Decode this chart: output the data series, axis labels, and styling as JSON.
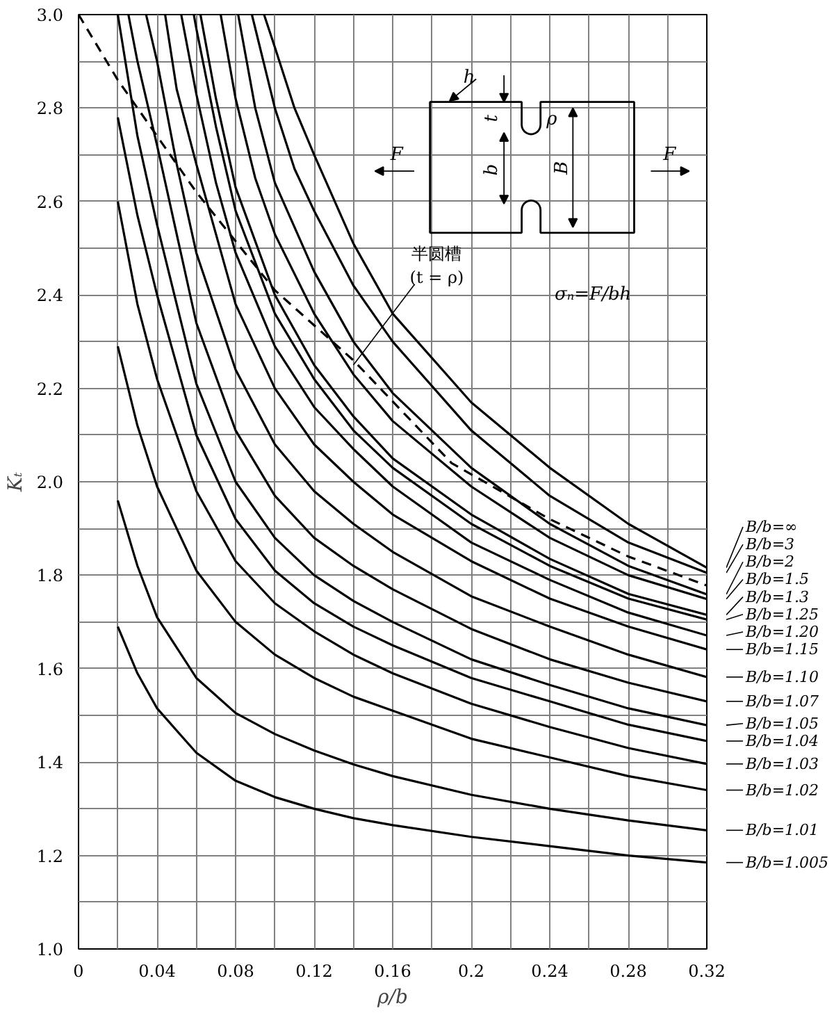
{
  "chart_data": {
    "type": "line",
    "xlabel": "ρ/b",
    "ylabel": "Kₜ",
    "xlim": [
      0,
      0.32
    ],
    "ylim": [
      1.0,
      3.0
    ],
    "xticks": [
      0,
      {
        "value": 0.02,
        "label": null
      },
      0.04,
      {
        "value": 0.06,
        "label": null
      },
      0.08,
      {
        "value": 0.1,
        "label": null
      },
      0.12,
      {
        "value": 0.14,
        "label": null
      },
      0.16,
      {
        "value": 0.18,
        "label": null
      },
      0.2,
      {
        "value": 0.22,
        "label": null
      },
      0.24,
      {
        "value": 0.26,
        "label": null
      },
      0.28,
      {
        "value": 0.3,
        "label": null
      },
      0.32
    ],
    "yticks": [
      {
        "value": 1.0,
        "label": "1.0"
      },
      {
        "value": 1.1,
        "label": null
      },
      1.2,
      {
        "value": 1.3,
        "label": null
      },
      1.4,
      {
        "value": 1.5,
        "label": null
      },
      1.6,
      {
        "value": 1.7,
        "label": null
      },
      1.8,
      {
        "value": 1.9,
        "label": null
      },
      {
        "value": 2.0,
        "label": "2.0"
      },
      {
        "value": 2.1,
        "label": null
      },
      2.2,
      {
        "value": 2.3,
        "label": null
      },
      2.4,
      {
        "value": 2.5,
        "label": null
      },
      2.6,
      {
        "value": 2.7,
        "label": null
      },
      2.8,
      {
        "value": 2.9,
        "label": null
      },
      {
        "value": 3.0,
        "label": "3.0"
      }
    ],
    "grid": true,
    "line_style": "solid",
    "legend": "right",
    "series": [
      {
        "name": "B/b=1.005",
        "color": "#000000",
        "x": [
          0.02,
          0.03,
          0.04,
          0.06,
          0.08,
          0.1,
          0.12,
          0.14,
          0.16,
          0.2,
          0.24,
          0.28,
          0.32
        ],
        "values": [
          1.69,
          1.59,
          1.515,
          1.42,
          1.36,
          1.325,
          1.3,
          1.28,
          1.265,
          1.24,
          1.22,
          1.2,
          1.185
        ]
      },
      {
        "name": "B/b=1.01",
        "color": "#000000",
        "x": [
          0.02,
          0.03,
          0.04,
          0.06,
          0.08,
          0.1,
          0.12,
          0.14,
          0.16,
          0.2,
          0.24,
          0.28,
          0.32
        ],
        "values": [
          1.96,
          1.82,
          1.71,
          1.58,
          1.505,
          1.46,
          1.425,
          1.395,
          1.37,
          1.33,
          1.3,
          1.275,
          1.254
        ]
      },
      {
        "name": "B/b=1.02",
        "color": "#000000",
        "x": [
          0.02,
          0.03,
          0.04,
          0.06,
          0.08,
          0.1,
          0.12,
          0.14,
          0.16,
          0.2,
          0.24,
          0.28,
          0.32
        ],
        "values": [
          2.29,
          2.12,
          1.99,
          1.81,
          1.7,
          1.63,
          1.58,
          1.54,
          1.51,
          1.45,
          1.41,
          1.37,
          1.34
        ]
      },
      {
        "name": "B/b=1.03",
        "color": "#000000",
        "x": [
          0.02,
          0.03,
          0.04,
          0.06,
          0.08,
          0.1,
          0.12,
          0.14,
          0.16,
          0.2,
          0.24,
          0.28,
          0.32
        ],
        "values": [
          2.6,
          2.38,
          2.22,
          1.98,
          1.83,
          1.74,
          1.68,
          1.63,
          1.59,
          1.525,
          1.475,
          1.43,
          1.396
        ]
      },
      {
        "name": "B/b=1.04",
        "color": "#000000",
        "x": [
          0.02,
          0.03,
          0.04,
          0.06,
          0.08,
          0.1,
          0.12,
          0.14,
          0.16,
          0.2,
          0.24,
          0.28,
          0.32
        ],
        "values": [
          2.78,
          2.57,
          2.4,
          2.1,
          1.92,
          1.81,
          1.74,
          1.69,
          1.65,
          1.58,
          1.53,
          1.48,
          1.445
        ]
      },
      {
        "name": "B/b=1.05",
        "color": "#000000",
        "x": [
          0.02,
          0.03,
          0.04,
          0.06,
          0.08,
          0.1,
          0.12,
          0.14,
          0.16,
          0.2,
          0.24,
          0.28,
          0.32
        ],
        "values": [
          3.0,
          2.74,
          2.55,
          2.21,
          2.0,
          1.88,
          1.8,
          1.745,
          1.7,
          1.62,
          1.565,
          1.515,
          1.479
        ]
      },
      {
        "name": "B/b=1.07",
        "color": "#000000",
        "x": [
          0.0254,
          0.03,
          0.04,
          0.06,
          0.08,
          0.1,
          0.12,
          0.14,
          0.16,
          0.2,
          0.24,
          0.28,
          0.32
        ],
        "values": [
          3.0,
          2.9,
          2.72,
          2.34,
          2.11,
          1.97,
          1.88,
          1.82,
          1.77,
          1.685,
          1.62,
          1.57,
          1.53
        ]
      },
      {
        "name": "B/b=1.10",
        "color": "#000000",
        "x": [
          0.0344,
          0.04,
          0.05,
          0.06,
          0.08,
          0.1,
          0.12,
          0.14,
          0.16,
          0.2,
          0.24,
          0.28,
          0.32
        ],
        "values": [
          3.0,
          2.9,
          2.68,
          2.49,
          2.24,
          2.08,
          1.98,
          1.91,
          1.85,
          1.755,
          1.69,
          1.63,
          1.582
        ]
      },
      {
        "name": "B/b=1.15",
        "color": "#000000",
        "x": [
          0.0441,
          0.05,
          0.06,
          0.08,
          0.1,
          0.12,
          0.14,
          0.16,
          0.2,
          0.24,
          0.28,
          0.32
        ],
        "values": [
          3.0,
          2.84,
          2.68,
          2.38,
          2.2,
          2.08,
          2.0,
          1.93,
          1.83,
          1.75,
          1.69,
          1.641
        ]
      },
      {
        "name": "B/b=1.20",
        "color": "#000000",
        "x": [
          0.0523,
          0.06,
          0.07,
          0.08,
          0.1,
          0.12,
          0.14,
          0.16,
          0.2,
          0.24,
          0.28,
          0.32
        ],
        "values": [
          3.0,
          2.83,
          2.64,
          2.49,
          2.29,
          2.16,
          2.07,
          1.99,
          1.87,
          1.79,
          1.72,
          1.671
        ]
      },
      {
        "name": "B/b=1.25",
        "color": "#000000",
        "x": [
          0.0587,
          0.06,
          0.07,
          0.08,
          0.1,
          0.12,
          0.14,
          0.16,
          0.2,
          0.24,
          0.28,
          0.32
        ],
        "values": [
          3.0,
          2.97,
          2.76,
          2.58,
          2.36,
          2.22,
          2.11,
          2.03,
          1.91,
          1.82,
          1.75,
          1.705
        ]
      },
      {
        "name": "B/b=1.3",
        "color": "#000000",
        "x": [
          0.0621,
          0.07,
          0.08,
          0.1,
          0.12,
          0.14,
          0.16,
          0.2,
          0.24,
          0.28,
          0.32
        ],
        "values": [
          3.0,
          2.82,
          2.63,
          2.4,
          2.25,
          2.14,
          2.05,
          1.93,
          1.835,
          1.76,
          1.715
        ]
      },
      {
        "name": "B/b=1.5",
        "color": "#000000",
        "x": [
          0.0724,
          0.08,
          0.09,
          0.1,
          0.12,
          0.14,
          0.16,
          0.2,
          0.24,
          0.28,
          0.32
        ],
        "values": [
          3.0,
          2.82,
          2.65,
          2.53,
          2.36,
          2.23,
          2.13,
          1.99,
          1.88,
          1.8,
          1.749
        ]
      },
      {
        "name": "B/b=2",
        "color": "#000000",
        "x": [
          0.0813,
          0.09,
          0.1,
          0.12,
          0.14,
          0.16,
          0.2,
          0.24,
          0.28,
          0.32
        ],
        "values": [
          3.0,
          2.8,
          2.64,
          2.45,
          2.3,
          2.19,
          2.03,
          1.91,
          1.82,
          1.759
        ]
      },
      {
        "name": "B/b=3",
        "color": "#000000",
        "x": [
          0.0883,
          0.1,
          0.11,
          0.12,
          0.14,
          0.16,
          0.2,
          0.24,
          0.28,
          0.32
        ],
        "values": [
          3.0,
          2.8,
          2.67,
          2.58,
          2.42,
          2.3,
          2.11,
          1.97,
          1.87,
          1.805
        ]
      },
      {
        "name": "B/b=∞",
        "color": "#000000",
        "x": [
          0.0945,
          0.1,
          0.11,
          0.12,
          0.14,
          0.16,
          0.2,
          0.24,
          0.28,
          0.32
        ],
        "values": [
          3.0,
          2.93,
          2.8,
          2.7,
          2.51,
          2.36,
          2.17,
          2.03,
          1.91,
          1.816
        ]
      },
      {
        "color": "#000000",
        "line_style": "dashed",
        "x": [
          0,
          0.02,
          0.06,
          0.1,
          0.14,
          0.19,
          0.24,
          0.28,
          0.32
        ],
        "values": [
          3.0,
          2.86,
          2.62,
          2.41,
          2.26,
          2.04,
          1.92,
          1.84,
          1.778
        ]
      }
    ],
    "annotations": [
      {
        "text": "半圆槽\n(t = ρ)",
        "x": 0.14,
        "y": 2.25
      },
      "F",
      "F",
      "h",
      "t",
      "ρ",
      "b",
      "B",
      "σₙ=F/bh"
    ]
  }
}
